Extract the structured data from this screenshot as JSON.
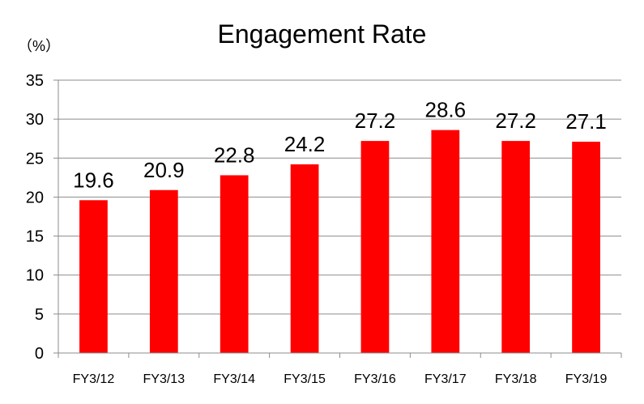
{
  "chart_data": {
    "type": "bar",
    "title": "Engagement Rate",
    "unit_label": "（%）",
    "categories": [
      "FY3/12",
      "FY3/13",
      "FY3/14",
      "FY3/15",
      "FY3/16",
      "FY3/17",
      "FY3/18",
      "FY3/19"
    ],
    "values": [
      19.6,
      20.9,
      22.8,
      24.2,
      27.2,
      28.6,
      27.2,
      27.1
    ],
    "ylim": [
      0,
      35
    ],
    "yticks": [
      0,
      5,
      10,
      15,
      20,
      25,
      30,
      35
    ],
    "grid": true,
    "legend": "none",
    "bar_color": "#FF0000"
  }
}
